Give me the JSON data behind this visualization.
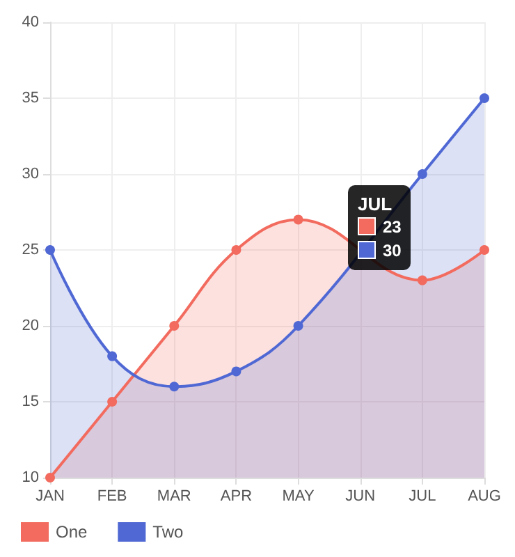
{
  "chart_data": {
    "type": "area",
    "categories": [
      "JAN",
      "FEB",
      "MAR",
      "APR",
      "MAY",
      "JUN",
      "JUL",
      "AUG"
    ],
    "series": [
      {
        "name": "One",
        "color": "#f26b5e",
        "values": [
          10,
          15,
          20,
          25,
          27,
          null,
          23,
          25
        ]
      },
      {
        "name": "Two",
        "color": "#4f68d4",
        "values": [
          25,
          18,
          16,
          17,
          20,
          null,
          30,
          35
        ]
      }
    ],
    "ylim": [
      10,
      40
    ],
    "yticks": [
      10,
      15,
      20,
      25,
      30,
      35,
      40
    ],
    "grid": true,
    "legend": "bottom left",
    "marker": "circle",
    "annotations": [
      "JUL",
      "23",
      "30"
    ]
  }
}
